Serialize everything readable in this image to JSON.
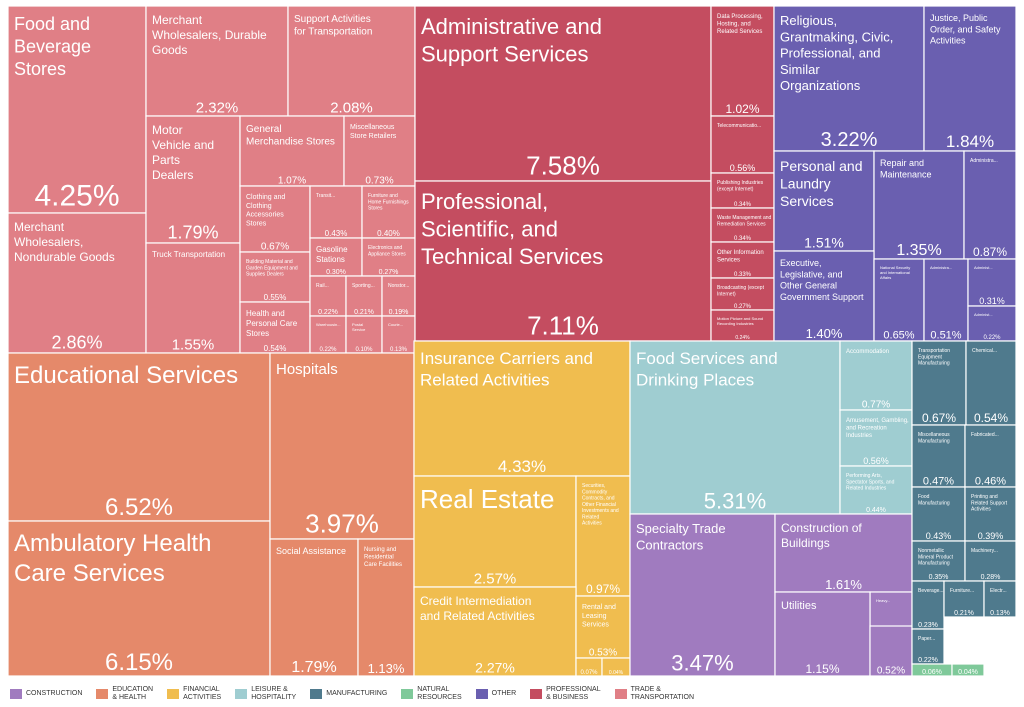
{
  "chart_data": {
    "type": "treemap",
    "unit": "%",
    "sectors": [
      {
        "key": "trade",
        "name": "TRADE & TRANSPORTATION",
        "color": "#e07f86",
        "items": [
          {
            "label": "Food and Beverage Stores",
            "value": "4.25%"
          },
          {
            "label": "Merchant Wholesalers, Nondurable Goods",
            "value": "2.86%"
          },
          {
            "label": "Merchant Wholesalers, Durable Goods",
            "value": "2.32%"
          },
          {
            "label": "Support Activities for Transportation",
            "value": "2.08%"
          },
          {
            "label": "Motor Vehicle and Parts Dealers",
            "value": "1.79%"
          },
          {
            "label": "Truck Transportation",
            "value": "1.55%"
          },
          {
            "label": "General Merchandise Stores",
            "value": "1.07%"
          },
          {
            "label": "Miscellaneous Store Retailers",
            "value": "0.73%"
          },
          {
            "label": "Clothing and Clothing Accessories Stores",
            "value": "0.67%"
          },
          {
            "label": "Building Material and Garden Equipment and Supplies Dealers",
            "value": "0.55%"
          },
          {
            "label": "Health and Personal Care Stores",
            "value": "0.54%"
          },
          {
            "label": "Transit...",
            "value": "0.43%"
          },
          {
            "label": "Furniture and Home Furnishings Stores",
            "value": "0.40%"
          },
          {
            "label": "Gasoline Stations",
            "value": "0.30%"
          },
          {
            "label": "Electronics and Appliance Stores",
            "value": "0.27%"
          },
          {
            "label": "Rail...",
            "value": "0.22%"
          },
          {
            "label": "Sporting...",
            "value": "0.21%"
          },
          {
            "label": "Nonstor...",
            "value": "0.19%"
          },
          {
            "label": "Warehousin...",
            "value": "0.22%"
          },
          {
            "label": "Postal Service",
            "value": "0.10%"
          },
          {
            "label": "Courie...",
            "value": "0.13%"
          }
        ]
      },
      {
        "key": "education",
        "name": "EDUCATION & HEALTH",
        "color": "#e5896a",
        "items": [
          {
            "label": "Educational Services",
            "value": "6.52%"
          },
          {
            "label": "Ambulatory Health Care Services",
            "value": "6.15%"
          },
          {
            "label": "Hospitals",
            "value": "3.97%"
          },
          {
            "label": "Social Assistance",
            "value": "1.79%"
          },
          {
            "label": "Nursing and Residential Care Facilities",
            "value": "1.13%"
          }
        ]
      },
      {
        "key": "professional",
        "name": "PROFESSIONAL & BUSINESS",
        "color": "#c44d60",
        "items": [
          {
            "label": "Administrative and Support Services",
            "value": "7.58%"
          },
          {
            "label": "Professional, Scientific, and Technical Services",
            "value": "7.11%"
          },
          {
            "label": "Data Processing, Hosting, and Related Services",
            "value": "1.02%"
          },
          {
            "label": "Telecommunicatio...",
            "value": "0.56%"
          },
          {
            "label": "Publishing Industries (except Internet)",
            "value": "0.34%"
          },
          {
            "label": "Waste Management and Remediation Services",
            "value": "0.34%"
          },
          {
            "label": "Other Information Services",
            "value": "0.33%"
          },
          {
            "label": "Broadcasting (except Internet)",
            "value": "0.27%"
          },
          {
            "label": "Motion Picture and Sound Recording Industries",
            "value": "0.24%"
          }
        ]
      },
      {
        "key": "other",
        "name": "OTHER",
        "color": "#6a5fb0",
        "items": [
          {
            "label": "Religious, Grantmaking, Civic, Professional, and Similar Organizations",
            "value": "3.22%"
          },
          {
            "label": "Justice, Public Order, and Safety Activities",
            "value": "1.84%"
          },
          {
            "label": "Personal and Laundry Services",
            "value": "1.51%"
          },
          {
            "label": "Repair and Maintenance",
            "value": "1.35%"
          },
          {
            "label": "Administra...",
            "value": "0.87%"
          },
          {
            "label": "Executive, Legislative, and Other General Government Support",
            "value": "1.40%"
          },
          {
            "label": "National Security and International Affairs",
            "value": "0.65%"
          },
          {
            "label": "Administra...",
            "value": "0.51%"
          },
          {
            "label": "Administ...",
            "value": "0.31%"
          },
          {
            "label": "Administ...",
            "value": "0.22%"
          }
        ]
      },
      {
        "key": "financial",
        "name": "FINANCIAL ACTIVITIES",
        "color": "#f0bd4f",
        "items": [
          {
            "label": "Insurance Carriers and Related Activities",
            "value": "4.33%"
          },
          {
            "label": "Real Estate",
            "value": "2.57%"
          },
          {
            "label": "Securities, Commodity Contracts, and Other Financial Investments and Related Activities",
            "value": "0.97%"
          },
          {
            "label": "Credit Intermediation and Related Activities",
            "value": "2.27%"
          },
          {
            "label": "Rental and Leasing Services",
            "value": "0.53%"
          },
          {
            "label": "",
            "value": "0.07%"
          },
          {
            "label": "",
            "value": "0.04%"
          }
        ]
      },
      {
        "key": "leisure",
        "name": "LEISURE & HOSPITALITY",
        "color": "#9fcdd1",
        "items": [
          {
            "label": "Food Services and Drinking Places",
            "value": "5.31%"
          },
          {
            "label": "Accommodation",
            "value": "0.77%"
          },
          {
            "label": "Amusement, Gambling, and Recreation Industries",
            "value": "0.56%"
          },
          {
            "label": "Performing Arts, Spectator Sports, and Related Industries",
            "value": "0.44%"
          }
        ]
      },
      {
        "key": "construction",
        "name": "CONSTRUCTION",
        "color": "#a07bbf",
        "items": [
          {
            "label": "Specialty Trade Contractors",
            "value": "3.47%"
          },
          {
            "label": "Construction of Buildings",
            "value": "1.61%"
          },
          {
            "label": "Heavy...",
            "value": ""
          }
        ]
      },
      {
        "key": "utilities",
        "name": "",
        "color": "#a07bbf",
        "items": [
          {
            "label": "Utilities",
            "value": "1.15%"
          },
          {
            "label": "",
            "value": "0.52%"
          }
        ]
      },
      {
        "key": "manufacturing",
        "name": "MANUFACTURING",
        "color": "#4f7a8d",
        "items": [
          {
            "label": "Transportation Equipment Manufacturing",
            "value": "0.67%"
          },
          {
            "label": "Chemical...",
            "value": "0.54%"
          },
          {
            "label": "Miscellaneous Manufacturing",
            "value": "0.47%"
          },
          {
            "label": "Fabricated...",
            "value": "0.46%"
          },
          {
            "label": "Food Manufacturing",
            "value": "0.43%"
          },
          {
            "label": "Printing and Related Support Activities",
            "value": "0.39%"
          },
          {
            "label": "Nonmetallic Mineral Product Manufacturing",
            "value": "0.35%"
          },
          {
            "label": "Machinery...",
            "value": "0.28%"
          },
          {
            "label": "Beverage...",
            "value": "0.23%"
          },
          {
            "label": "Furniture...",
            "value": "0.21%"
          },
          {
            "label": "Electr...",
            "value": "0.13%"
          },
          {
            "label": "Paper...",
            "value": "0.22%"
          }
        ]
      },
      {
        "key": "natural",
        "name": "NATURAL RESOURCES",
        "color": "#7fc99a",
        "items": [
          {
            "label": "",
            "value": "0.06%"
          },
          {
            "label": "",
            "value": "0.04%"
          }
        ]
      }
    ],
    "legend": [
      {
        "label": "CONSTRUCTION",
        "color": "#a07bbf"
      },
      {
        "label": "EDUCATION\n& HEALTH",
        "color": "#e5896a"
      },
      {
        "label": "FINANCIAL\nACTIVITIES",
        "color": "#f0bd4f"
      },
      {
        "label": "LEISURE &\nHOSPITALITY",
        "color": "#9fcdd1"
      },
      {
        "label": "MANUFACTURING",
        "color": "#4f7a8d"
      },
      {
        "label": "NATURAL\nRESOURCES",
        "color": "#7fc99a"
      },
      {
        "label": "OTHER",
        "color": "#6a5fb0"
      },
      {
        "label": "PROFESSIONAL\n& BUSINESS",
        "color": "#c44d60"
      },
      {
        "label": "TRADE &\nTRANSPORTATION",
        "color": "#e07f86"
      }
    ],
    "legend_position": "bottom"
  }
}
